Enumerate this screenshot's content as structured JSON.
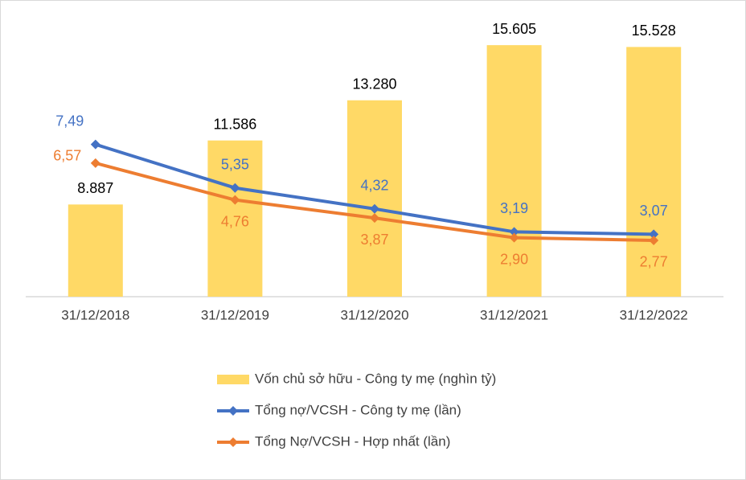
{
  "chart_data": {
    "type": "combo",
    "categories": [
      "31/12/2018",
      "31/12/2019",
      "31/12/2020",
      "31/12/2021",
      "31/12/2022"
    ],
    "series": [
      {
        "name": "Vốn chủ sở hữu - Công ty mẹ (nghìn tỷ)",
        "type": "bar",
        "color": "#FFD966",
        "label_color": "#000000",
        "values": [
          8887,
          11586,
          13280,
          15605,
          15528
        ],
        "value_labels": [
          "8.887",
          "11.586",
          "13.280",
          "15.605",
          "15.528"
        ]
      },
      {
        "name": "Tổng nợ/VCSH - Công ty mẹ (lần)",
        "type": "line",
        "axis": "y2",
        "color": "#4472C4",
        "label_color": "#4472C4",
        "values": [
          7.49,
          5.35,
          4.32,
          3.19,
          3.07
        ],
        "value_labels": [
          "7,49",
          "5,35",
          "4,32",
          "3,19",
          "3,07"
        ]
      },
      {
        "name": "Tổng Nợ/VCSH - Hợp nhất (lần)",
        "type": "line",
        "axis": "y2",
        "color": "#ED7D31",
        "label_color": "#ED7D31",
        "values": [
          6.57,
          4.76,
          3.87,
          2.9,
          2.77
        ],
        "value_labels": [
          "6,57",
          "4,76",
          "3,87",
          "2,90",
          "2,77"
        ]
      }
    ],
    "ylim": [
      5000,
      17000
    ],
    "y2lim": [
      0,
      14
    ],
    "legend": "bottom"
  }
}
